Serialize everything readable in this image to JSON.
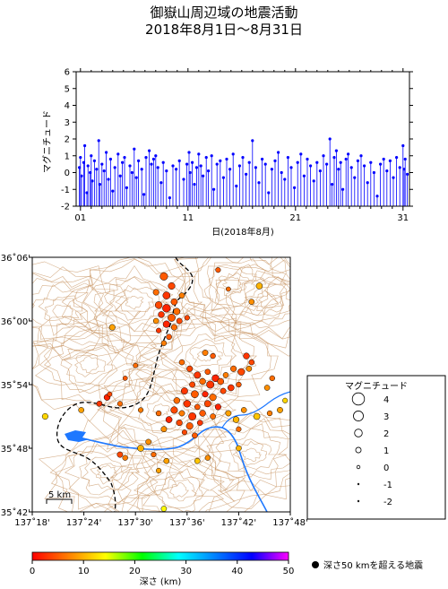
{
  "title": {
    "line1": "御嶽山周辺域の地震活動",
    "line2": "2018年8月1日～8月31日"
  },
  "colors": {
    "stem": "#0000ff",
    "contour": "#c89664",
    "river": "#1e78ff",
    "border": "#000000",
    "frame": "#000000"
  },
  "chart_data": [
    {
      "type": "stem",
      "ylabel": "マグニチュード",
      "xlabel": "日(2018年8月)",
      "ylim": [
        -2,
        6
      ],
      "yticks": [
        "6",
        "5",
        "4",
        "3",
        "2",
        "1",
        "0",
        "-1",
        "-2"
      ],
      "xlim": [
        0.6,
        31.6
      ],
      "xticks": [
        "01",
        "11",
        "21",
        "31"
      ],
      "events": [
        [
          0.9,
          0.3
        ],
        [
          1.0,
          0.9
        ],
        [
          1.1,
          -0.2
        ],
        [
          1.3,
          0.6
        ],
        [
          1.4,
          1.6
        ],
        [
          1.6,
          -1.2
        ],
        [
          1.7,
          0.4
        ],
        [
          1.9,
          0.0
        ],
        [
          2.0,
          1.0
        ],
        [
          2.1,
          -0.5
        ],
        [
          2.3,
          0.7
        ],
        [
          2.5,
          0.2
        ],
        [
          2.7,
          1.9
        ],
        [
          2.8,
          -0.7
        ],
        [
          3.0,
          0.5
        ],
        [
          3.2,
          0.1
        ],
        [
          3.4,
          1.2
        ],
        [
          3.6,
          -0.4
        ],
        [
          3.8,
          0.8
        ],
        [
          4.0,
          -1.1
        ],
        [
          4.2,
          0.3
        ],
        [
          4.5,
          1.1
        ],
        [
          4.7,
          -0.2
        ],
        [
          4.9,
          0.6
        ],
        [
          5.1,
          0.9
        ],
        [
          5.3,
          -0.9
        ],
        [
          5.6,
          0.4
        ],
        [
          5.8,
          0.0
        ],
        [
          6.0,
          1.4
        ],
        [
          6.2,
          -0.3
        ],
        [
          6.4,
          0.7
        ],
        [
          6.7,
          0.2
        ],
        [
          6.9,
          -1.3
        ],
        [
          7.1,
          0.9
        ],
        [
          7.4,
          1.3
        ],
        [
          7.6,
          0.5
        ],
        [
          7.8,
          0.8
        ],
        [
          8.0,
          1.0
        ],
        [
          8.2,
          0.3
        ],
        [
          8.5,
          -0.6
        ],
        [
          8.7,
          0.6
        ],
        [
          9.0,
          0.1
        ],
        [
          9.3,
          -1.5
        ],
        [
          9.6,
          0.4
        ],
        [
          9.9,
          0.2
        ],
        [
          10.2,
          0.7
        ],
        [
          10.6,
          -0.4
        ],
        [
          10.9,
          0.5
        ],
        [
          11.1,
          1.2
        ],
        [
          11.2,
          0.0
        ],
        [
          11.4,
          0.6
        ],
        [
          11.6,
          -0.7
        ],
        [
          11.8,
          0.3
        ],
        [
          12.0,
          1.1
        ],
        [
          12.2,
          0.4
        ],
        [
          12.4,
          -0.2
        ],
        [
          12.7,
          0.9
        ],
        [
          12.9,
          0.1
        ],
        [
          13.2,
          1.0
        ],
        [
          13.4,
          -1.0
        ],
        [
          13.7,
          0.5
        ],
        [
          14.0,
          0.7
        ],
        [
          14.3,
          -0.3
        ],
        [
          14.6,
          0.8
        ],
        [
          14.9,
          0.2
        ],
        [
          15.2,
          1.1
        ],
        [
          15.5,
          -0.8
        ],
        [
          15.8,
          0.4
        ],
        [
          16.1,
          0.9
        ],
        [
          16.4,
          -0.1
        ],
        [
          16.7,
          0.6
        ],
        [
          17.0,
          1.9
        ],
        [
          17.3,
          0.3
        ],
        [
          17.6,
          -0.6
        ],
        [
          17.9,
          0.8
        ],
        [
          18.2,
          0.5
        ],
        [
          18.5,
          -1.2
        ],
        [
          18.8,
          0.2
        ],
        [
          19.1,
          0.7
        ],
        [
          19.4,
          1.2
        ],
        [
          19.7,
          0.0
        ],
        [
          20.0,
          -0.4
        ],
        [
          20.3,
          0.9
        ],
        [
          20.6,
          0.3
        ],
        [
          20.9,
          -0.9
        ],
        [
          21.2,
          0.6
        ],
        [
          21.5,
          1.1
        ],
        [
          21.8,
          -0.2
        ],
        [
          22.1,
          0.8
        ],
        [
          22.4,
          0.4
        ],
        [
          22.7,
          -0.5
        ],
        [
          23.0,
          0.6
        ],
        [
          23.3,
          0.1
        ],
        [
          23.6,
          1.0
        ],
        [
          23.9,
          0.5
        ],
        [
          24.2,
          2.0
        ],
        [
          24.4,
          -0.7
        ],
        [
          24.6,
          0.9
        ],
        [
          24.8,
          1.3
        ],
        [
          25.0,
          0.2
        ],
        [
          25.2,
          0.6
        ],
        [
          25.4,
          -1.0
        ],
        [
          25.7,
          0.8
        ],
        [
          25.9,
          1.1
        ],
        [
          26.2,
          0.3
        ],
        [
          26.5,
          -0.3
        ],
        [
          26.8,
          0.7
        ],
        [
          27.1,
          1.0
        ],
        [
          27.4,
          0.4
        ],
        [
          27.7,
          -0.6
        ],
        [
          28.0,
          0.6
        ],
        [
          28.3,
          0.0
        ],
        [
          28.6,
          -1.4
        ],
        [
          28.9,
          0.5
        ],
        [
          29.2,
          0.8
        ],
        [
          29.5,
          0.1
        ],
        [
          29.8,
          0.7
        ],
        [
          30.1,
          -0.3
        ],
        [
          30.4,
          0.9
        ],
        [
          30.7,
          0.3
        ],
        [
          31.0,
          1.6
        ],
        [
          31.1,
          0.2
        ],
        [
          31.2,
          0.8
        ],
        [
          31.4,
          -0.1
        ]
      ]
    },
    {
      "type": "scatter-map",
      "lon_ticks": [
        "137˚18'",
        "137˚24'",
        "137˚30'",
        "137˚36'",
        "137˚42'",
        "137˚48'"
      ],
      "lat_ticks": [
        "36˚06'",
        "36˚00'",
        "35˚54'",
        "35˚48'",
        "35˚42'"
      ],
      "lon_range": [
        137.3,
        137.8
      ],
      "lat_range": [
        35.7,
        36.1
      ],
      "scale_label": "5 km",
      "legend": {
        "title": "マグニチュード",
        "entries": [
          "4",
          "3",
          "2",
          "1",
          "0",
          "-1",
          "-2"
        ]
      },
      "colorbar": {
        "label": "深さ (km)",
        "ticks": [
          "0",
          "10",
          "20",
          "30",
          "40",
          "50"
        ],
        "range": [
          0,
          50
        ],
        "stops": [
          "#ff0000",
          "#ff8000",
          "#ffff00",
          "#00ff00",
          "#00ffff",
          "#0080ff",
          "#0000ff",
          "#ff00ff"
        ]
      },
      "deep_note": "深さ50 kmを超える地震",
      "events": [
        [
          137.555,
          36.07,
          2.0,
          5
        ],
        [
          137.57,
          36.055,
          1.6,
          4
        ],
        [
          137.54,
          36.045,
          1.2,
          6
        ],
        [
          137.56,
          36.04,
          1.8,
          3
        ],
        [
          137.575,
          36.03,
          1.4,
          5
        ],
        [
          137.59,
          36.04,
          1.0,
          7
        ],
        [
          137.545,
          36.025,
          1.7,
          4
        ],
        [
          137.56,
          36.02,
          2.1,
          2
        ],
        [
          137.58,
          36.015,
          1.5,
          6
        ],
        [
          137.55,
          36.01,
          1.3,
          3
        ],
        [
          137.57,
          36.005,
          1.9,
          5
        ],
        [
          137.585,
          36.0,
          1.1,
          4
        ],
        [
          137.54,
          36.0,
          1.0,
          8
        ],
        [
          137.56,
          35.995,
          1.6,
          2
        ],
        [
          137.575,
          35.99,
          1.2,
          6
        ],
        [
          137.545,
          35.985,
          0.8,
          3
        ],
        [
          137.565,
          35.975,
          1.0,
          5
        ],
        [
          137.555,
          35.965,
          0.9,
          7
        ],
        [
          137.455,
          35.99,
          1.2,
          9
        ],
        [
          137.6,
          36.005,
          0.8,
          4
        ],
        [
          137.74,
          36.055,
          1.4,
          10
        ],
        [
          137.725,
          36.03,
          1.0,
          8
        ],
        [
          137.68,
          36.05,
          0.6,
          6
        ],
        [
          137.66,
          36.08,
          0.8,
          5
        ],
        [
          137.605,
          35.925,
          1.2,
          4
        ],
        [
          137.62,
          35.915,
          1.5,
          3
        ],
        [
          137.64,
          35.92,
          1.0,
          5
        ],
        [
          137.655,
          35.91,
          1.7,
          2
        ],
        [
          137.63,
          35.905,
          1.3,
          6
        ],
        [
          137.61,
          35.9,
          1.1,
          4
        ],
        [
          137.645,
          35.9,
          1.9,
          3
        ],
        [
          137.665,
          35.905,
          1.4,
          5
        ],
        [
          137.675,
          35.915,
          1.0,
          7
        ],
        [
          137.69,
          35.925,
          1.2,
          6
        ],
        [
          137.705,
          35.92,
          1.6,
          4
        ],
        [
          137.72,
          35.925,
          1.0,
          8
        ],
        [
          137.595,
          35.89,
          1.5,
          3
        ],
        [
          137.615,
          35.885,
          1.8,
          5
        ],
        [
          137.635,
          35.885,
          1.2,
          2
        ],
        [
          137.65,
          35.88,
          1.6,
          6
        ],
        [
          137.67,
          35.89,
          1.1,
          4
        ],
        [
          137.685,
          35.895,
          1.4,
          3
        ],
        [
          137.7,
          35.9,
          0.9,
          5
        ],
        [
          137.58,
          35.875,
          1.3,
          6
        ],
        [
          137.6,
          35.87,
          1.7,
          3
        ],
        [
          137.62,
          35.865,
          1.0,
          5
        ],
        [
          137.64,
          35.87,
          1.5,
          4
        ],
        [
          137.66,
          35.865,
          1.2,
          2
        ],
        [
          137.575,
          35.86,
          1.6,
          4
        ],
        [
          137.59,
          35.855,
          1.1,
          7
        ],
        [
          137.61,
          35.85,
          1.9,
          3
        ],
        [
          137.63,
          35.855,
          1.3,
          5
        ],
        [
          137.65,
          35.85,
          1.0,
          6
        ],
        [
          137.565,
          35.845,
          1.4,
          2
        ],
        [
          137.585,
          35.84,
          1.2,
          4
        ],
        [
          137.605,
          35.835,
          1.6,
          5
        ],
        [
          137.625,
          35.84,
          1.0,
          3
        ],
        [
          137.545,
          35.855,
          0.9,
          6
        ],
        [
          137.555,
          35.83,
          1.1,
          8
        ],
        [
          137.595,
          35.825,
          0.8,
          4
        ],
        [
          137.615,
          35.82,
          1.0,
          5
        ],
        [
          137.68,
          35.855,
          1.1,
          9
        ],
        [
          137.695,
          35.845,
          1.3,
          10
        ],
        [
          137.71,
          35.86,
          1.0,
          8
        ],
        [
          137.735,
          35.85,
          1.4,
          11
        ],
        [
          137.76,
          35.855,
          0.9,
          7
        ],
        [
          137.78,
          35.86,
          1.1,
          9
        ],
        [
          137.79,
          35.875,
          0.8,
          12
        ],
        [
          137.7,
          35.83,
          0.8,
          6
        ],
        [
          137.725,
          35.935,
          1.0,
          4
        ],
        [
          137.715,
          35.945,
          1.3,
          3
        ],
        [
          137.65,
          35.945,
          0.9,
          5
        ],
        [
          137.635,
          35.95,
          1.1,
          7
        ],
        [
          137.59,
          35.935,
          1.0,
          6
        ],
        [
          137.445,
          35.88,
          1.3,
          2
        ],
        [
          137.43,
          35.87,
          1.0,
          3
        ],
        [
          137.45,
          35.885,
          0.7,
          4
        ],
        [
          137.47,
          35.87,
          0.8,
          6
        ],
        [
          137.395,
          35.86,
          1.0,
          9
        ],
        [
          137.325,
          35.85,
          1.2,
          12
        ],
        [
          137.51,
          35.8,
          1.4,
          10
        ],
        [
          137.525,
          35.81,
          1.0,
          8
        ],
        [
          137.535,
          35.79,
          0.8,
          6
        ],
        [
          137.47,
          35.79,
          1.1,
          4
        ],
        [
          137.48,
          35.785,
          0.9,
          7
        ],
        [
          137.56,
          35.78,
          1.0,
          9
        ],
        [
          137.62,
          35.78,
          1.0,
          11
        ],
        [
          137.64,
          35.785,
          0.9,
          8
        ],
        [
          137.7,
          35.8,
          1.0,
          10
        ],
        [
          137.555,
          35.705,
          1.0,
          14
        ],
        [
          137.545,
          35.765,
          0.8,
          9
        ],
        [
          137.48,
          35.91,
          0.6,
          5
        ],
        [
          137.5,
          35.93,
          0.7,
          6
        ],
        [
          137.51,
          35.86,
          0.8,
          7
        ],
        [
          137.755,
          35.895,
          1.0,
          8
        ],
        [
          137.765,
          35.91,
          0.9,
          6
        ]
      ]
    }
  ]
}
